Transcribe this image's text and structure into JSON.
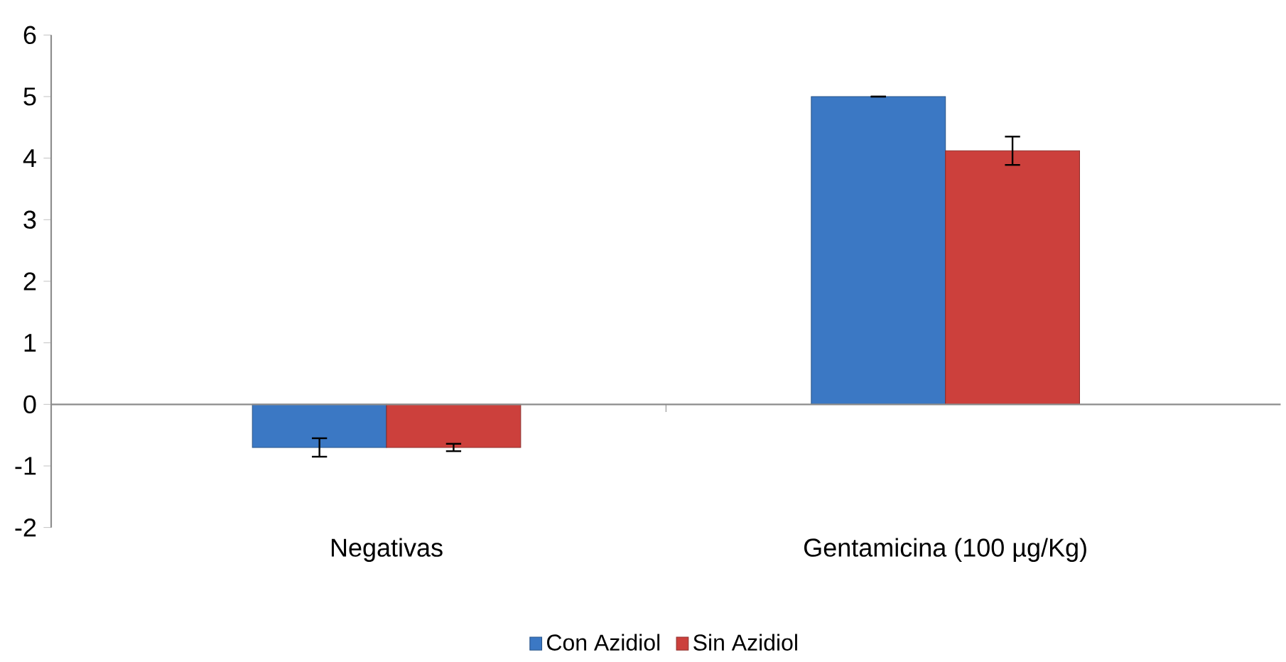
{
  "chart_data": {
    "type": "bar",
    "categories": [
      "Negativas",
      "Gentamicina (100 µg/Kg)"
    ],
    "series": [
      {
        "name": "Con Azidiol",
        "color": "#3b78c4",
        "values": [
          -0.7,
          5.0
        ],
        "errors": [
          0.15,
          0
        ]
      },
      {
        "name": "Sin Azidiol",
        "color": "#cc403c",
        "values": [
          -0.7,
          4.12
        ],
        "errors": [
          0.06,
          0.23
        ]
      }
    ],
    "ylim": [
      -2,
      6
    ],
    "yticks": [
      -2,
      -1,
      0,
      1,
      2,
      3,
      4,
      5,
      6
    ],
    "legend": "bottom"
  }
}
